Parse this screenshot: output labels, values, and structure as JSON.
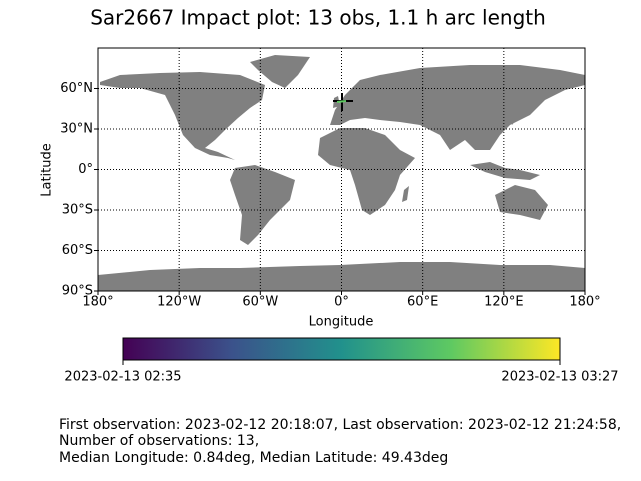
{
  "title": "Sar2667 Impact plot: 13 obs, 1.1 h arc length",
  "map": {
    "xlabel": "Longitude",
    "ylabel": "Latitude",
    "xlim": [
      -180,
      180
    ],
    "ylim": [
      -90,
      90
    ],
    "xticks": [
      {
        "value": -180,
        "label": "180°"
      },
      {
        "value": -120,
        "label": "120°W"
      },
      {
        "value": -60,
        "label": "60°W"
      },
      {
        "value": 0,
        "label": "0°"
      },
      {
        "value": 60,
        "label": "60°E"
      },
      {
        "value": 120,
        "label": "120°E"
      },
      {
        "value": 180,
        "label": "180°"
      }
    ],
    "yticks": [
      {
        "value": -90,
        "label": "90°S"
      },
      {
        "value": -60,
        "label": "60°S"
      },
      {
        "value": -30,
        "label": "30°S"
      },
      {
        "value": 0,
        "label": "0°"
      },
      {
        "value": 30,
        "label": "30°N"
      },
      {
        "value": 60,
        "label": "60°N"
      }
    ],
    "grid": true,
    "land_color": "#808080"
  },
  "colorbar": {
    "labels": [
      "2023-02-13 02:35",
      "2023-02-13 03:27"
    ]
  },
  "footer": [
    "First observation: 2023-02-12 20:18:07, Last observation: 2023-02-12 21:24:58,",
    "Number of observations: 13,",
    "Median Longitude: 0.84deg, Median Latitude: 49.43deg"
  ]
}
